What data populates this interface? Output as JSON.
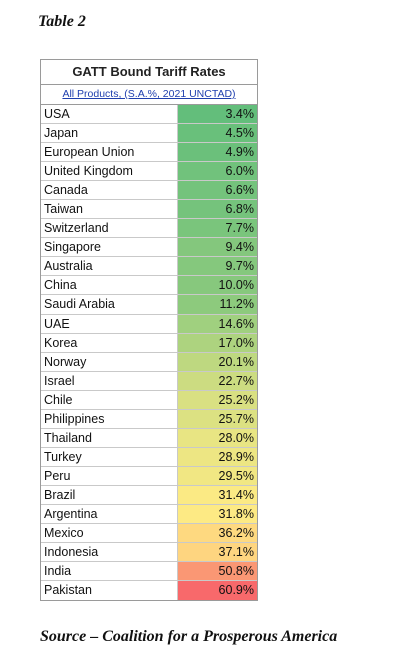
{
  "caption": "Table 2",
  "table": {
    "title": "GATT Bound Tariff Rates",
    "subtitle": "All Products, (S.A.%, 2021 UNCTAD)",
    "rows": [
      {
        "country": "USA",
        "rate": "3.4%",
        "value": 3.4
      },
      {
        "country": "Japan",
        "rate": "4.5%",
        "value": 4.5
      },
      {
        "country": "European Union",
        "rate": "4.9%",
        "value": 4.9
      },
      {
        "country": "United Kingdom",
        "rate": "6.0%",
        "value": 6.0
      },
      {
        "country": "Canada",
        "rate": "6.6%",
        "value": 6.6
      },
      {
        "country": "Taiwan",
        "rate": "6.8%",
        "value": 6.8
      },
      {
        "country": "Switzerland",
        "rate": "7.7%",
        "value": 7.7
      },
      {
        "country": "Singapore",
        "rate": "9.4%",
        "value": 9.4
      },
      {
        "country": "Australia",
        "rate": "9.7%",
        "value": 9.7
      },
      {
        "country": "China",
        "rate": "10.0%",
        "value": 10.0
      },
      {
        "country": "Saudi Arabia",
        "rate": "11.2%",
        "value": 11.2
      },
      {
        "country": "UAE",
        "rate": "14.6%",
        "value": 14.6
      },
      {
        "country": "Korea",
        "rate": "17.0%",
        "value": 17.0
      },
      {
        "country": "Norway",
        "rate": "20.1%",
        "value": 20.1
      },
      {
        "country": "Israel",
        "rate": "22.7%",
        "value": 22.7
      },
      {
        "country": "Chile",
        "rate": "25.2%",
        "value": 25.2
      },
      {
        "country": "Philippines",
        "rate": "25.7%",
        "value": 25.7
      },
      {
        "country": "Thailand",
        "rate": "28.0%",
        "value": 28.0
      },
      {
        "country": "Turkey",
        "rate": "28.9%",
        "value": 28.9
      },
      {
        "country": "Peru",
        "rate": "29.5%",
        "value": 29.5
      },
      {
        "country": "Brazil",
        "rate": "31.4%",
        "value": 31.4
      },
      {
        "country": "Argentina",
        "rate": "31.8%",
        "value": 31.8
      },
      {
        "country": "Mexico",
        "rate": "36.2%",
        "value": 36.2
      },
      {
        "country": "Indonesia",
        "rate": "37.1%",
        "value": 37.1
      },
      {
        "country": "India",
        "rate": "50.8%",
        "value": 50.8
      },
      {
        "country": "Pakistan",
        "rate": "60.9%",
        "value": 60.9
      }
    ]
  },
  "colors": {
    "scale_low": "#63be7b",
    "scale_mid": "#ffeb84",
    "scale_high": "#f8696b"
  },
  "source": "Source – Coalition for a Prosperous America"
}
